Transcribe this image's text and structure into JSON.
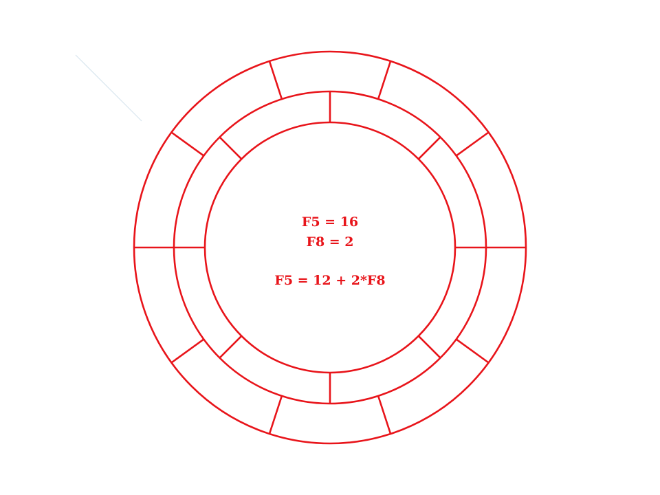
{
  "diagram": {
    "colors": {
      "ring_stroke": "#e8141a",
      "deco_line": "#d8e6ee",
      "background": "#ffffff"
    },
    "rings": {
      "outer_segments": 10,
      "inner_segments": 8
    },
    "text": {
      "line1": "F5 = 16",
      "line2": "F8 = 2",
      "line3": "F5 = 12  + 2*F8"
    }
  }
}
